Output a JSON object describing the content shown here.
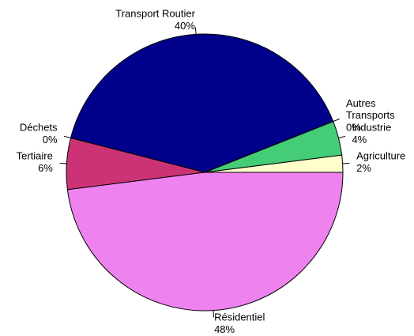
{
  "chart_data": {
    "type": "pie",
    "categories": [
      "Agriculture",
      "Industrie",
      "Autres\nTransports",
      "Transport Routier",
      "Déchets",
      "Tertiaire",
      "Résidentiel"
    ],
    "values": [
      2,
      4,
      0,
      40,
      0,
      6,
      48
    ],
    "value_labels": [
      "2%",
      "4%",
      "0%",
      "40%",
      "0%",
      "6%",
      "48%"
    ],
    "colors": [
      "#ffffcc",
      "#44cc77",
      "#2f8f6f",
      "#00008b",
      "#5a1a5a",
      "#cc3377",
      "#ee82ee"
    ]
  }
}
